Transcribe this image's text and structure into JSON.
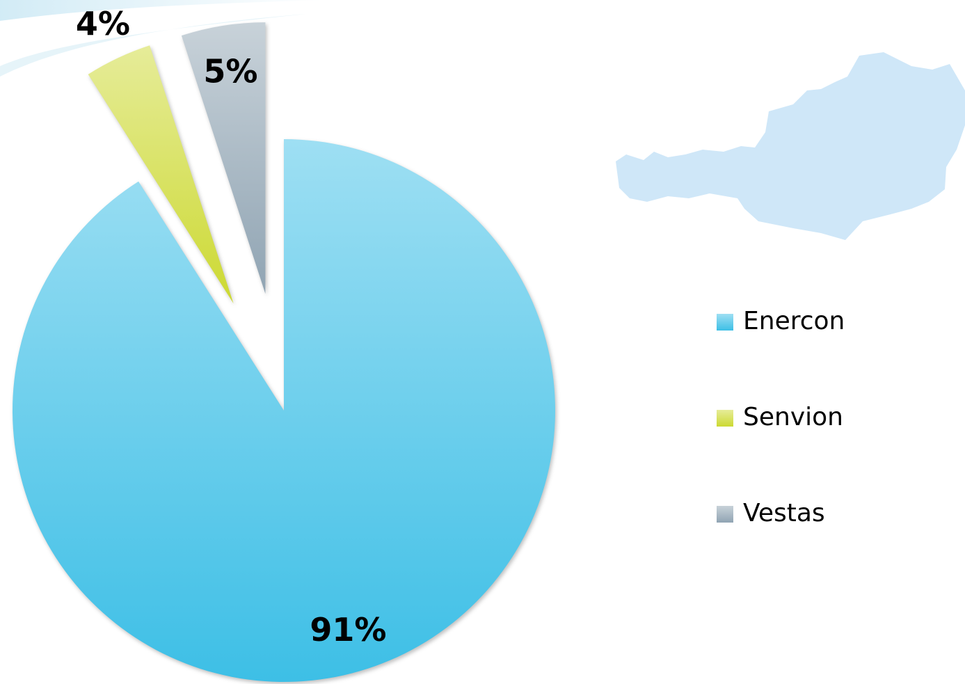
{
  "chart_data": {
    "type": "pie",
    "categories": [
      "Enercon",
      "Senvion",
      "Vestas"
    ],
    "values": [
      91,
      4,
      5
    ],
    "value_labels": [
      "91%",
      "4%",
      "5%"
    ],
    "colors": [
      "#3dbfe6",
      "#ccd932",
      "#90a4b3"
    ],
    "legend": "right"
  }
}
